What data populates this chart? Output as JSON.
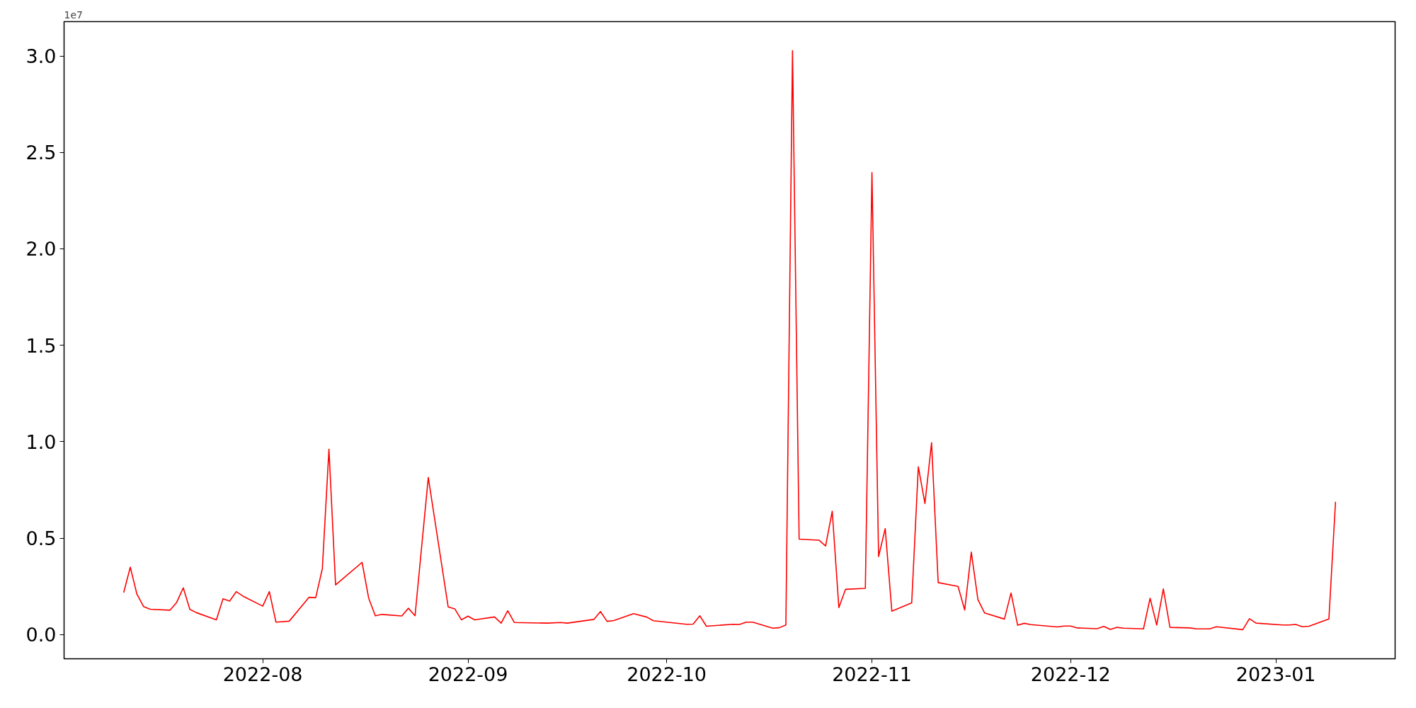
{
  "chart_data": {
    "type": "line",
    "x": [
      "2022-07-11",
      "2022-07-12",
      "2022-07-13",
      "2022-07-14",
      "2022-07-15",
      "2022-07-18",
      "2022-07-19",
      "2022-07-20",
      "2022-07-21",
      "2022-07-22",
      "2022-07-25",
      "2022-07-26",
      "2022-07-27",
      "2022-07-28",
      "2022-07-29",
      "2022-08-01",
      "2022-08-02",
      "2022-08-03",
      "2022-08-05",
      "2022-08-08",
      "2022-08-09",
      "2022-08-10",
      "2022-08-11",
      "2022-08-12",
      "2022-08-16",
      "2022-08-17",
      "2022-08-18",
      "2022-08-19",
      "2022-08-22",
      "2022-08-23",
      "2022-08-24",
      "2022-08-26",
      "2022-08-29",
      "2022-08-30",
      "2022-08-31",
      "2022-09-01",
      "2022-09-02",
      "2022-09-05",
      "2022-09-06",
      "2022-09-07",
      "2022-09-08",
      "2022-09-13",
      "2022-09-15",
      "2022-09-16",
      "2022-09-20",
      "2022-09-21",
      "2022-09-22",
      "2022-09-23",
      "2022-09-26",
      "2022-09-28",
      "2022-09-29",
      "2022-10-04",
      "2022-10-05",
      "2022-10-06",
      "2022-10-07",
      "2022-10-11",
      "2022-10-12",
      "2022-10-13",
      "2022-10-14",
      "2022-10-17",
      "2022-10-18",
      "2022-10-19",
      "2022-10-20",
      "2022-10-21",
      "2022-10-24",
      "2022-10-25",
      "2022-10-26",
      "2022-10-27",
      "2022-10-28",
      "2022-10-31",
      "2022-11-01",
      "2022-11-02",
      "2022-11-03",
      "2022-11-04",
      "2022-11-07",
      "2022-11-08",
      "2022-11-09",
      "2022-11-10",
      "2022-11-11",
      "2022-11-14",
      "2022-11-15",
      "2022-11-16",
      "2022-11-17",
      "2022-11-18",
      "2022-11-21",
      "2022-11-22",
      "2022-11-23",
      "2022-11-24",
      "2022-11-25",
      "2022-11-29",
      "2022-11-30",
      "2022-12-01",
      "2022-12-02",
      "2022-12-05",
      "2022-12-06",
      "2022-12-07",
      "2022-12-08",
      "2022-12-09",
      "2022-12-12",
      "2022-12-13",
      "2022-12-14",
      "2022-12-15",
      "2022-12-16",
      "2022-12-19",
      "2022-12-20",
      "2022-12-22",
      "2022-12-23",
      "2022-12-27",
      "2022-12-28",
      "2022-12-29",
      "2023-01-02",
      "2023-01-03",
      "2023-01-04",
      "2023-01-05",
      "2023-01-06",
      "2023-01-09",
      "2023-01-10"
    ],
    "series": [
      {
        "color": "#ff0000",
        "values": [
          0.218,
          0.35,
          0.21,
          0.146,
          0.132,
          0.127,
          0.167,
          0.243,
          0.131,
          0.114,
          0.077,
          0.186,
          0.174,
          0.223,
          0.2,
          0.148,
          0.223,
          0.065,
          0.07,
          0.194,
          0.192,
          0.342,
          0.961,
          0.258,
          0.375,
          0.189,
          0.098,
          0.105,
          0.097,
          0.137,
          0.098,
          0.815,
          0.144,
          0.134,
          0.077,
          0.096,
          0.077,
          0.092,
          0.06,
          0.124,
          0.063,
          0.06,
          0.063,
          0.06,
          0.079,
          0.12,
          0.069,
          0.073,
          0.109,
          0.091,
          0.072,
          0.054,
          0.055,
          0.098,
          0.044,
          0.054,
          0.053,
          0.065,
          0.065,
          0.034,
          0.036,
          0.05,
          3.027,
          0.495,
          0.49,
          0.46,
          0.64,
          0.14,
          0.235,
          0.24,
          2.395,
          0.405,
          0.55,
          0.122,
          0.165,
          0.87,
          0.68,
          0.995,
          0.27,
          0.25,
          0.128,
          0.428,
          0.182,
          0.113,
          0.081,
          0.216,
          0.049,
          0.059,
          0.052,
          0.04,
          0.045,
          0.045,
          0.035,
          0.031,
          0.043,
          0.027,
          0.038,
          0.034,
          0.03,
          0.189,
          0.05,
          0.237,
          0.038,
          0.035,
          0.03,
          0.03,
          0.041,
          0.026,
          0.083,
          0.06,
          0.05,
          0.05,
          0.053,
          0.041,
          0.044,
          0.081,
          0.689
        ]
      }
    ],
    "xlim": [
      "2022-07-02",
      "2023-01-19"
    ],
    "xticks": [
      {
        "value": "2022-08-01",
        "label": "2022-08"
      },
      {
        "value": "2022-09-01",
        "label": "2022-09"
      },
      {
        "value": "2022-10-01",
        "label": "2022-10"
      },
      {
        "value": "2022-11-01",
        "label": "2022-11"
      },
      {
        "value": "2022-12-01",
        "label": "2022-12"
      },
      {
        "value": "2023-01-01",
        "label": "2023-01"
      }
    ],
    "ylim": [
      -0.125,
      3.178
    ],
    "yticks": [
      {
        "value": 0,
        "label": "0.0"
      },
      0.5,
      {
        "value": 1,
        "label": "1.0"
      },
      1.5,
      {
        "value": 2,
        "label": "2.0"
      },
      2.5,
      {
        "value": 3,
        "label": "3.0"
      }
    ],
    "annotations": [
      "1e7"
    ],
    "grid": false,
    "line_style": "solid"
  }
}
